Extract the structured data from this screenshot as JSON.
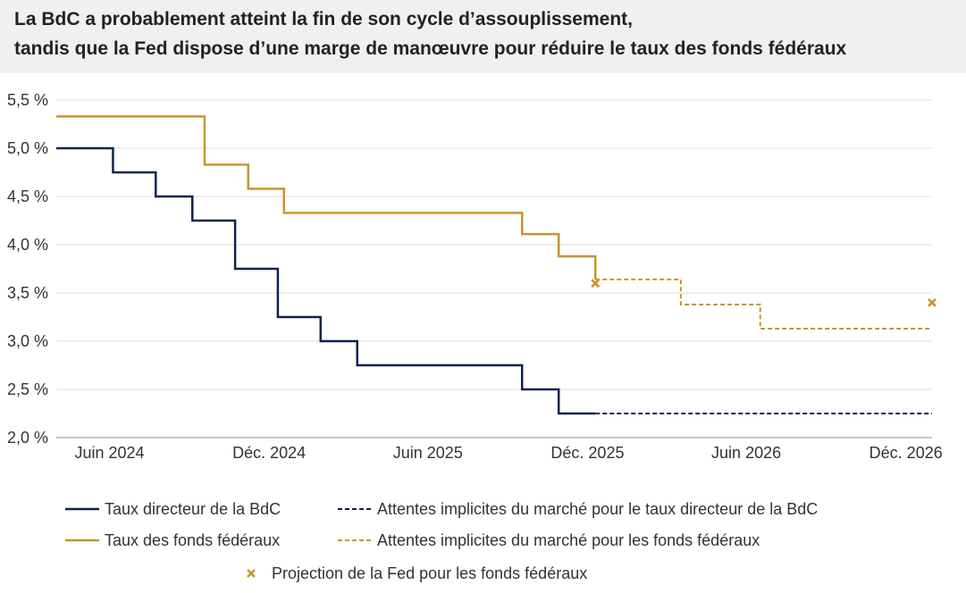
{
  "title_lines": [
    "La BdC a probablement atteint la fin de son cycle d’assouplissement,",
    "tandis que la Fed dispose d’une marge de manœuvre pour réduire le taux des fonds fédéraux"
  ],
  "chart_data": {
    "type": "line",
    "title": "La BdC a probablement atteint la fin de son cycle d’assouplissement, tandis que la Fed dispose d’une marge de manœuvre pour réduire le taux des fonds fédéraux",
    "xlabel": "",
    "ylabel": "",
    "x_ticks": [
      "Juin 2024",
      "Déc. 2024",
      "Juin 2025",
      "Déc. 2025",
      "Juin 2026",
      "Déc. 2026"
    ],
    "y_ticks": [
      "2,0 %",
      "2,5 %",
      "3,0 %",
      "3,5 %",
      "4,0 %",
      "4,5 %",
      "5,0 %",
      "5,5 %"
    ],
    "ylim": [
      2.0,
      5.5
    ],
    "xlim": [
      "2024-04-01",
      "2026-12-31"
    ],
    "grid": true,
    "legend_position": "bottom",
    "series": [
      {
        "name": "Taux directeur de la BdC",
        "color": "#0d2350",
        "style": "solid",
        "step": true,
        "points": [
          [
            "2024-04-01",
            5.0
          ],
          [
            "2024-06-05",
            4.75
          ],
          [
            "2024-07-24",
            4.5
          ],
          [
            "2024-09-04",
            4.25
          ],
          [
            "2024-10-23",
            3.75
          ],
          [
            "2024-12-11",
            3.25
          ],
          [
            "2025-01-29",
            3.0
          ],
          [
            "2025-03-12",
            2.75
          ],
          [
            "2025-09-17",
            2.5
          ],
          [
            "2025-10-29",
            2.25
          ],
          [
            "2025-12-10",
            2.25
          ]
        ]
      },
      {
        "name": "Attentes implicites du marché pour le taux directeur de la BdC",
        "color": "#0d2350",
        "style": "dashed",
        "step": true,
        "points": [
          [
            "2025-12-10",
            2.25
          ],
          [
            "2026-12-31",
            2.25
          ]
        ]
      },
      {
        "name": "Taux des fonds fédéraux",
        "color": "#c8952a",
        "style": "solid",
        "step": true,
        "points": [
          [
            "2024-04-01",
            5.33
          ],
          [
            "2024-09-18",
            4.83
          ],
          [
            "2024-11-07",
            4.58
          ],
          [
            "2024-12-18",
            4.33
          ],
          [
            "2025-09-17",
            4.11
          ],
          [
            "2025-10-29",
            3.88
          ],
          [
            "2025-12-10",
            3.64
          ]
        ]
      },
      {
        "name": "Attentes implicites du marché pour les fonds fédéraux",
        "color": "#c8952a",
        "style": "dashed",
        "step": true,
        "points": [
          [
            "2025-12-10",
            3.64
          ],
          [
            "2026-03-18",
            3.38
          ],
          [
            "2026-06-17",
            3.13
          ],
          [
            "2026-12-31",
            3.13
          ]
        ]
      },
      {
        "name": "Projection de la Fed pour les fonds fédéraux",
        "color": "#c8952a",
        "style": "marker",
        "marker": "x",
        "points": [
          [
            "2025-12-10",
            3.6
          ],
          [
            "2026-12-31",
            3.4
          ]
        ]
      }
    ]
  }
}
